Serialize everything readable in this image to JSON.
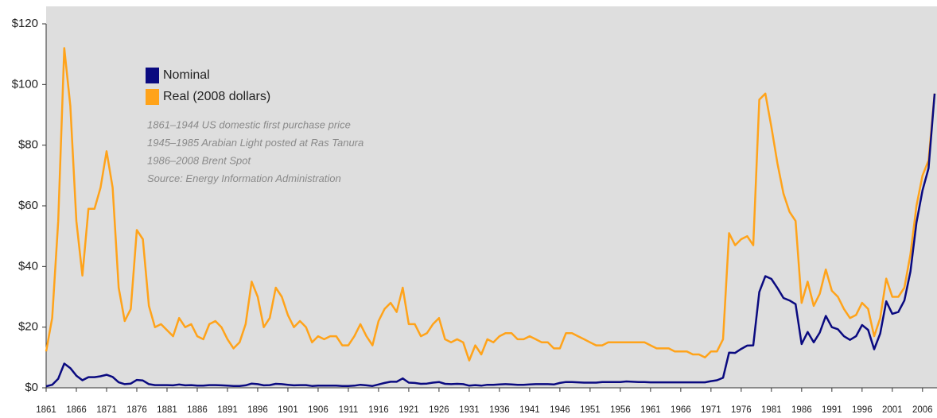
{
  "chart_data": {
    "type": "line",
    "annotations": [
      "1861–1944 US domestic first purchase price",
      "1945–1985 Arabian Light posted at Ras Tanura",
      "1986–2008 Brent Spot",
      "Source: Energy Information Administration"
    ],
    "x": [
      1861,
      1862,
      1863,
      1864,
      1865,
      1866,
      1867,
      1868,
      1869,
      1870,
      1871,
      1872,
      1873,
      1874,
      1875,
      1876,
      1877,
      1878,
      1879,
      1880,
      1881,
      1882,
      1883,
      1884,
      1885,
      1886,
      1887,
      1888,
      1889,
      1890,
      1891,
      1892,
      1893,
      1894,
      1895,
      1896,
      1897,
      1898,
      1899,
      1900,
      1901,
      1902,
      1903,
      1904,
      1905,
      1906,
      1907,
      1908,
      1909,
      1910,
      1911,
      1912,
      1913,
      1914,
      1915,
      1916,
      1917,
      1918,
      1919,
      1920,
      1921,
      1922,
      1923,
      1924,
      1925,
      1926,
      1927,
      1928,
      1929,
      1930,
      1931,
      1932,
      1933,
      1934,
      1935,
      1936,
      1937,
      1938,
      1939,
      1940,
      1941,
      1942,
      1943,
      1944,
      1945,
      1946,
      1947,
      1948,
      1949,
      1950,
      1951,
      1952,
      1953,
      1954,
      1955,
      1956,
      1957,
      1958,
      1959,
      1960,
      1961,
      1962,
      1963,
      1964,
      1965,
      1966,
      1967,
      1968,
      1969,
      1970,
      1971,
      1972,
      1973,
      1974,
      1975,
      1976,
      1977,
      1978,
      1979,
      1980,
      1981,
      1982,
      1983,
      1984,
      1985,
      1986,
      1987,
      1988,
      1989,
      1990,
      1991,
      1992,
      1993,
      1994,
      1995,
      1996,
      1997,
      1998,
      1999,
      2000,
      2001,
      2002,
      2003,
      2004,
      2005,
      2006,
      2007,
      2008
    ],
    "series": [
      {
        "name": "Nominal",
        "color": "#0a0a80",
        "values": [
          0.5,
          1,
          3,
          8,
          6.5,
          4,
          2.5,
          3.5,
          3.5,
          3.8,
          4.3,
          3.6,
          1.8,
          1.2,
          1.4,
          2.6,
          2.4,
          1.2,
          0.9,
          0.9,
          0.9,
          0.8,
          1.1,
          0.8,
          0.9,
          0.7,
          0.7,
          0.9,
          0.9,
          0.8,
          0.7,
          0.6,
          0.6,
          0.8,
          1.4,
          1.2,
          0.8,
          0.9,
          1.3,
          1.2,
          1,
          0.8,
          0.9,
          0.9,
          0.6,
          0.7,
          0.7,
          0.7,
          0.7,
          0.6,
          0.6,
          0.7,
          1,
          0.8,
          0.6,
          1.1,
          1.6,
          2,
          2,
          3.1,
          1.7,
          1.6,
          1.3,
          1.4,
          1.7,
          1.9,
          1.3,
          1.2,
          1.3,
          1.2,
          0.7,
          0.9,
          0.7,
          1,
          1,
          1.1,
          1.2,
          1.1,
          1,
          1,
          1.1,
          1.2,
          1.2,
          1.2,
          1.1,
          1.6,
          1.9,
          1.9,
          1.8,
          1.7,
          1.7,
          1.7,
          1.9,
          1.9,
          1.9,
          1.9,
          2.1,
          2,
          1.9,
          1.9,
          1.8,
          1.8,
          1.8,
          1.8,
          1.8,
          1.8,
          1.8,
          1.8,
          1.8,
          1.8,
          2.2,
          2.5,
          3.3,
          11.6,
          11.5,
          12.8,
          13.9,
          14,
          31.6,
          36.8,
          35.9,
          32.9,
          29.6,
          28.8,
          27.6,
          14.4,
          18.4,
          15,
          18.2,
          23.7,
          20,
          19.3,
          17,
          15.8,
          17,
          20.7,
          19.1,
          12.7,
          17.9,
          28.5,
          24.4,
          25,
          28.8,
          38.3,
          54.5,
          65.1,
          72.4,
          97
        ]
      },
      {
        "name": "Real (2008 dollars)",
        "color": "#ffa31a",
        "values": [
          12,
          23,
          55,
          112,
          93,
          55,
          37,
          59,
          59,
          66,
          78,
          66,
          33,
          22,
          26,
          52,
          49,
          27,
          20,
          21,
          19,
          17,
          23,
          20,
          21,
          17,
          16,
          21,
          22,
          20,
          16,
          13,
          15,
          21,
          35,
          30,
          20,
          23,
          33,
          30,
          24,
          20,
          22,
          20,
          15,
          17,
          16,
          17,
          17,
          14,
          14,
          17,
          21,
          17,
          14,
          22,
          26,
          28,
          25,
          33,
          21,
          21,
          17,
          18,
          21,
          23,
          16,
          15,
          16,
          15,
          9,
          14,
          11,
          16,
          15,
          17,
          18,
          18,
          16,
          16,
          17,
          16,
          15,
          15,
          13,
          13,
          18,
          18,
          17,
          16,
          15,
          14,
          14,
          15,
          15,
          15,
          15,
          15,
          15,
          15,
          14,
          13,
          13,
          13,
          12,
          12,
          12,
          11,
          11,
          10,
          12,
          12,
          16,
          51,
          47,
          49,
          50,
          47,
          95,
          97,
          86,
          74,
          64,
          58,
          55,
          28,
          35,
          27,
          31,
          39,
          32,
          30,
          26,
          23,
          24,
          28,
          26,
          17,
          23,
          36,
          30,
          30,
          33,
          44,
          60,
          70,
          75,
          97
        ]
      }
    ],
    "xlim": [
      1861,
      2008
    ],
    "xticks": [
      1861,
      1866,
      1871,
      1876,
      1881,
      1886,
      1891,
      1896,
      1901,
      1906,
      1911,
      1916,
      1921,
      1926,
      1931,
      1936,
      1941,
      1946,
      1951,
      1956,
      1961,
      1966,
      1971,
      1976,
      1981,
      1986,
      1991,
      1996,
      2001,
      2006
    ],
    "ylim": [
      0,
      120
    ],
    "yticks": [
      {
        "value": 0,
        "label": "$0"
      },
      {
        "value": 20,
        "label": "$20"
      },
      {
        "value": 40,
        "label": "$40"
      },
      {
        "value": 60,
        "label": "$60"
      },
      {
        "value": 80,
        "label": "$80"
      },
      {
        "value": 100,
        "label": "$100"
      },
      {
        "value": 120,
        "label": "$120"
      }
    ]
  }
}
